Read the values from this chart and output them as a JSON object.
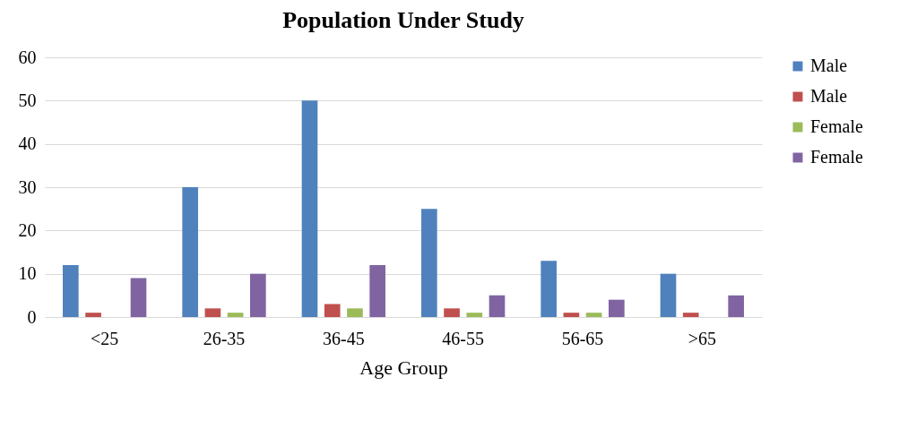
{
  "chart_data": {
    "type": "bar",
    "title": "Population Under Study",
    "xlabel": "Age Group",
    "categories": [
      "<25",
      "26-35",
      "36-45",
      "46-55",
      "56-65",
      ">65"
    ],
    "series": [
      {
        "name": "Male",
        "color": "#4f81bd",
        "values": [
          12,
          30,
          50,
          25,
          13,
          10
        ]
      },
      {
        "name": "Male",
        "color": "#c0504d",
        "values": [
          1,
          2,
          3,
          2,
          1,
          1
        ]
      },
      {
        "name": "Female",
        "color": "#9bbb59",
        "values": [
          0,
          1,
          2,
          1,
          1,
          0
        ]
      },
      {
        "name": "Female",
        "color": "#8064a2",
        "values": [
          9,
          10,
          12,
          5,
          4,
          5
        ]
      }
    ],
    "ylim": [
      0,
      60
    ],
    "yticks": [
      0,
      10,
      20,
      30,
      40,
      50,
      60
    ],
    "grid": "y",
    "legend": "right"
  }
}
